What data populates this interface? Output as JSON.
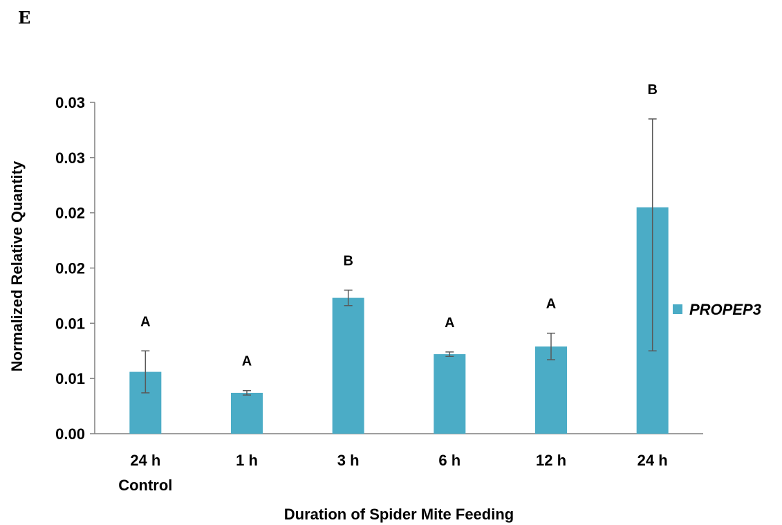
{
  "panel_label": "E",
  "chart_data": {
    "type": "bar",
    "categories": [
      [
        "24 h",
        "Control"
      ],
      [
        "1 h"
      ],
      [
        "3 h"
      ],
      [
        "6 h"
      ],
      [
        "12 h"
      ],
      [
        "24 h"
      ]
    ],
    "series": [
      {
        "name": "PROPEP3",
        "color": "#4bacc6",
        "values": [
          0.0056,
          0.0037,
          0.0123,
          0.0072,
          0.0079,
          0.0205
        ],
        "error_low": [
          0.0037,
          0.0035,
          0.0116,
          0.007,
          0.0067,
          0.0075
        ],
        "error_high": [
          0.0075,
          0.0039,
          0.013,
          0.0074,
          0.0091,
          0.0285
        ],
        "significance": [
          "A",
          "A",
          "B",
          "A",
          "A",
          "B"
        ]
      }
    ],
    "ylim": [
      0,
      0.03
    ],
    "yticks": [
      0,
      0.005,
      0.01,
      0.015,
      0.02,
      0.025,
      0.03
    ],
    "ytick_labels": [
      "0.00",
      "0.01",
      "0.01",
      "0.02",
      "0.02",
      "0.03",
      "0.03"
    ],
    "xlabel": "Duration of Spider Mite Feeding",
    "ylabel": "Normalized Relative Quantity",
    "grid": false,
    "legend_position": "right",
    "error_bar_color": "#595959",
    "axis_color": "#7f7f7f"
  }
}
